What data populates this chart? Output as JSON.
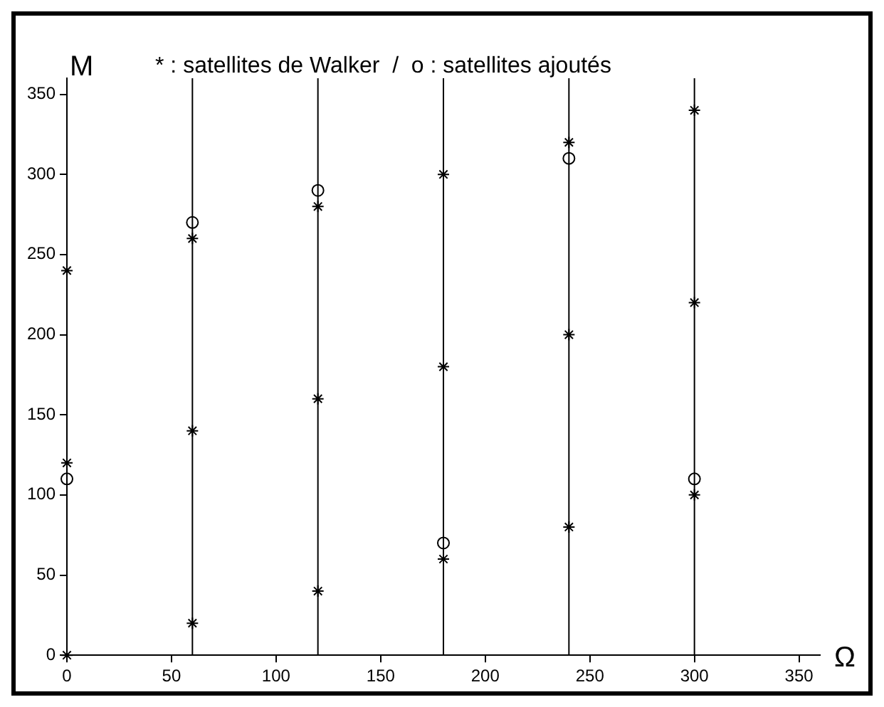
{
  "chart_data": {
    "type": "scatter",
    "title": "* : satellites de Walker  /  o : satellites ajoutés",
    "xlabel": "Ω",
    "ylabel": "M",
    "xlim": [
      0,
      360
    ],
    "ylim": [
      0,
      360
    ],
    "xticks": [
      0,
      50,
      100,
      150,
      200,
      250,
      300,
      350
    ],
    "yticks": [
      0,
      50,
      100,
      150,
      200,
      250,
      300,
      350
    ],
    "grid": false,
    "legend": false,
    "series": [
      {
        "color": "#000000",
        "marker": "cross",
        "x": [
          0,
          0,
          0,
          60,
          60,
          60,
          120,
          120,
          120,
          180,
          180,
          180,
          240,
          240,
          240,
          300,
          300,
          300
        ],
        "values": [
          0,
          120,
          240,
          20,
          140,
          260,
          40,
          160,
          280,
          60,
          180,
          300,
          80,
          200,
          320,
          100,
          220,
          340
        ]
      },
      {
        "color": "#000000",
        "marker": "circle",
        "x": [
          0,
          60,
          120,
          180,
          240,
          300
        ],
        "values": [
          110,
          270,
          290,
          70,
          310,
          110
        ]
      }
    ],
    "ref_lines": [
      {
        "axis": "x",
        "value": 60,
        "color": "#000000"
      },
      {
        "axis": "x",
        "value": 120,
        "color": "#000000"
      },
      {
        "axis": "x",
        "value": 180,
        "color": "#000000"
      },
      {
        "axis": "x",
        "value": 240,
        "color": "#000000"
      },
      {
        "axis": "x",
        "value": 300,
        "color": "#000000"
      }
    ]
  }
}
